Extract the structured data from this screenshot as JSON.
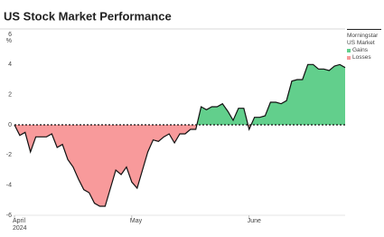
{
  "chart_data": {
    "type": "area",
    "title": "US Stock Market Performance",
    "y_unit": "%",
    "categories": [
      "April",
      null,
      null,
      null,
      null,
      null,
      null,
      null,
      null,
      null,
      null,
      null,
      null,
      null,
      null,
      null,
      null,
      null,
      null,
      null,
      null,
      null,
      "May",
      null,
      null,
      null,
      null,
      null,
      null,
      null,
      null,
      null,
      null,
      null,
      null,
      null,
      null,
      null,
      null,
      null,
      null,
      null,
      null,
      null,
      "June",
      null,
      null,
      null,
      null,
      null,
      null,
      null,
      null,
      null,
      null,
      null,
      null,
      null,
      null,
      null,
      null,
      null,
      null
    ],
    "year_label": "2024",
    "series": [
      {
        "name": "Morningstar US Market",
        "values": [
          0,
          -0.7,
          -0.5,
          -1.8,
          -0.8,
          -0.8,
          -0.8,
          -0.6,
          -1.5,
          -1.3,
          -2.3,
          -2.8,
          -3.6,
          -4.3,
          -4.5,
          -5.2,
          -5.4,
          -5.4,
          -4.2,
          -3.0,
          -3.3,
          -2.8,
          -3.8,
          -4.2,
          -3.0,
          -1.8,
          -1.0,
          -1.1,
          -0.8,
          -0.6,
          -1.2,
          -0.6,
          -0.6,
          -0.3,
          -0.3,
          1.2,
          1.0,
          1.2,
          1.2,
          1.4,
          0.9,
          0.3,
          1.1,
          1.1,
          -0.3,
          0.5,
          0.5,
          0.6,
          1.5,
          1.5,
          1.4,
          1.6,
          2.9,
          3.0,
          3.0,
          4.0,
          4.0,
          3.7,
          3.7,
          3.6,
          3.9,
          4.0,
          3.8
        ]
      }
    ],
    "gains": {
      "name": "Gains",
      "color": "#62cf8c"
    },
    "losses": {
      "name": "Losses",
      "color": "#f89a9b"
    },
    "ylim": [
      -6,
      6
    ],
    "yticks": [
      -6,
      -4,
      -2,
      0,
      2,
      4,
      6
    ]
  }
}
